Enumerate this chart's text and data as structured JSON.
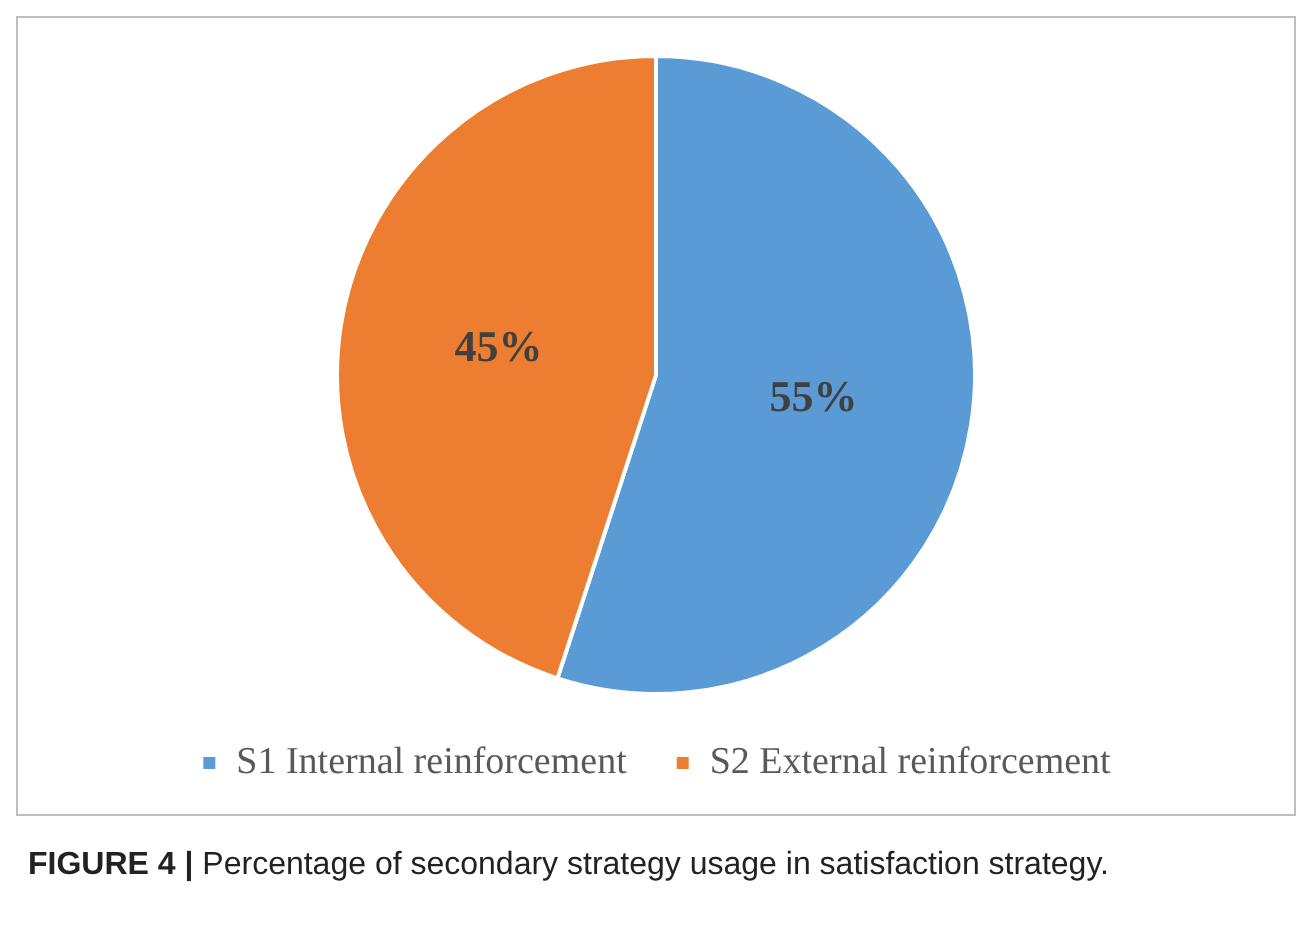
{
  "chart_data": {
    "type": "pie",
    "categories": [
      "S1 Internal reinforcement",
      "S2 External reinforcement"
    ],
    "values": [
      55,
      45
    ],
    "colors": [
      "#5b9bd5",
      "#ed7d31"
    ],
    "value_labels": [
      "55%",
      "45%"
    ],
    "legend": "bottom",
    "annotations": [
      "FIGURE 4 | Percentage of secondary strategy usage in satisfaction strategy."
    ]
  }
}
